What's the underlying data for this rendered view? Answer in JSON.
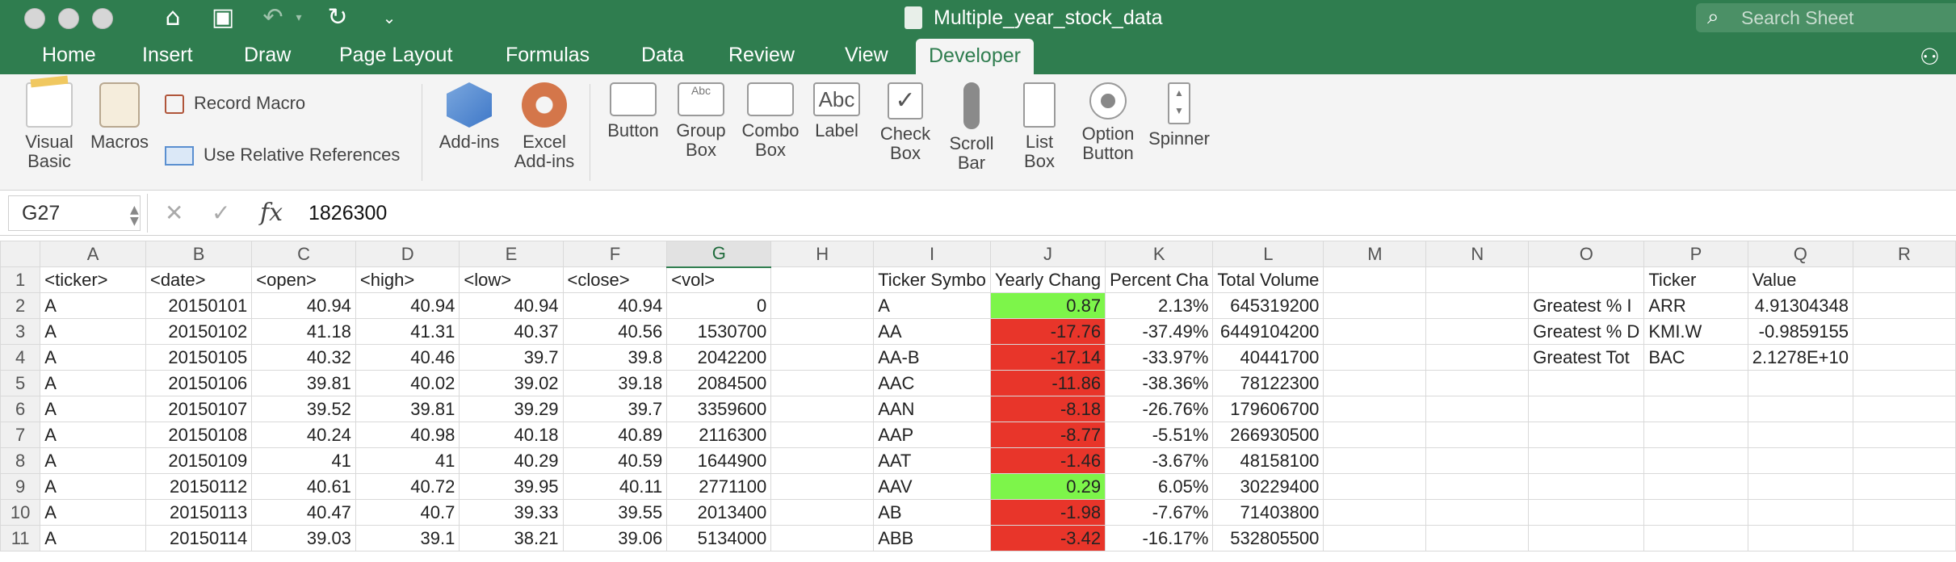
{
  "window": {
    "title": "Multiple_year_stock_data",
    "search_placeholder": "Search Sheet"
  },
  "tabs": [
    "Home",
    "Insert",
    "Draw",
    "Page Layout",
    "Formulas",
    "Data",
    "Review",
    "View",
    "Developer"
  ],
  "active_tab": "Developer",
  "ribbon": {
    "visual_basic": "Visual Basic",
    "macros": "Macros",
    "record_macro": "Record Macro",
    "use_relative": "Use Relative References",
    "add_ins": "Add-ins",
    "excel_add_ins": "Excel Add-ins",
    "button": "Button",
    "group_box": "Group Box",
    "combo_box": "Combo Box",
    "label": "Label",
    "check_box": "Check Box",
    "scroll_bar": "Scroll Bar",
    "list_box": "List Box",
    "option_button": "Option Button",
    "spinner": "Spinner",
    "abc": "Abc"
  },
  "formula_bar": {
    "name_box": "G27",
    "fx": "fx",
    "content": "1826300"
  },
  "columns": [
    "A",
    "B",
    "C",
    "D",
    "E",
    "F",
    "G",
    "H",
    "I",
    "J",
    "K",
    "L",
    "M",
    "N",
    "O",
    "P",
    "Q",
    "R"
  ],
  "selected_column": "G",
  "rows": [
    {
      "n": "1",
      "A": "<ticker>",
      "B": "<date>",
      "C": "<open>",
      "D": "<high>",
      "E": "<low>",
      "F": "<close>",
      "G": "<vol>",
      "I": "Ticker Symbo",
      "J": "Yearly Chang",
      "K": "Percent Cha",
      "L": "Total Volume",
      "P": "Ticker",
      "Q": "Value"
    },
    {
      "n": "2",
      "A": "A",
      "B": "20150101",
      "C": "40.94",
      "D": "40.94",
      "E": "40.94",
      "F": "40.94",
      "G": "0",
      "I": "A",
      "J": "0.87",
      "K": "2.13%",
      "L": "645319200",
      "O": "Greatest % I",
      "P": "ARR",
      "Q": "4.91304348"
    },
    {
      "n": "3",
      "A": "A",
      "B": "20150102",
      "C": "41.18",
      "D": "41.31",
      "E": "40.37",
      "F": "40.56",
      "G": "1530700",
      "I": "AA",
      "J": "-17.76",
      "K": "-37.49%",
      "L": "6449104200",
      "O": "Greatest % D",
      "P": "KMI.W",
      "Q": "-0.9859155"
    },
    {
      "n": "4",
      "A": "A",
      "B": "20150105",
      "C": "40.32",
      "D": "40.46",
      "E": "39.7",
      "F": "39.8",
      "G": "2042200",
      "I": "AA-B",
      "J": "-17.14",
      "K": "-33.97%",
      "L": "40441700",
      "O": "Greatest Tot",
      "P": "BAC",
      "Q": "2.1278E+10"
    },
    {
      "n": "5",
      "A": "A",
      "B": "20150106",
      "C": "39.81",
      "D": "40.02",
      "E": "39.02",
      "F": "39.18",
      "G": "2084500",
      "I": "AAC",
      "J": "-11.86",
      "K": "-38.36%",
      "L": "78122300"
    },
    {
      "n": "6",
      "A": "A",
      "B": "20150107",
      "C": "39.52",
      "D": "39.81",
      "E": "39.29",
      "F": "39.7",
      "G": "3359600",
      "I": "AAN",
      "J": "-8.18",
      "K": "-26.76%",
      "L": "179606700"
    },
    {
      "n": "7",
      "A": "A",
      "B": "20150108",
      "C": "40.24",
      "D": "40.98",
      "E": "40.18",
      "F": "40.89",
      "G": "2116300",
      "I": "AAP",
      "J": "-8.77",
      "K": "-5.51%",
      "L": "266930500"
    },
    {
      "n": "8",
      "A": "A",
      "B": "20150109",
      "C": "41",
      "D": "41",
      "E": "40.29",
      "F": "40.59",
      "G": "1644900",
      "I": "AAT",
      "J": "-1.46",
      "K": "-3.67%",
      "L": "48158100"
    },
    {
      "n": "9",
      "A": "A",
      "B": "20150112",
      "C": "40.61",
      "D": "40.72",
      "E": "39.95",
      "F": "40.11",
      "G": "2771100",
      "I": "AAV",
      "J": "0.29",
      "K": "6.05%",
      "L": "30229400"
    },
    {
      "n": "10",
      "A": "A",
      "B": "20150113",
      "C": "40.47",
      "D": "40.7",
      "E": "39.33",
      "F": "39.55",
      "G": "2013400",
      "I": "AB",
      "J": "-1.98",
      "K": "-7.67%",
      "L": "71403800"
    },
    {
      "n": "11",
      "A": "A",
      "B": "20150114",
      "C": "39.03",
      "D": "39.1",
      "E": "38.21",
      "F": "39.06",
      "G": "5134000",
      "I": "ABB",
      "J": "-3.42",
      "K": "-16.17%",
      "L": "532805500"
    }
  ],
  "colors": {
    "title_bar": "#2f7d4f",
    "positive_fill": "#7df54a",
    "negative_fill": "#e8352a"
  }
}
